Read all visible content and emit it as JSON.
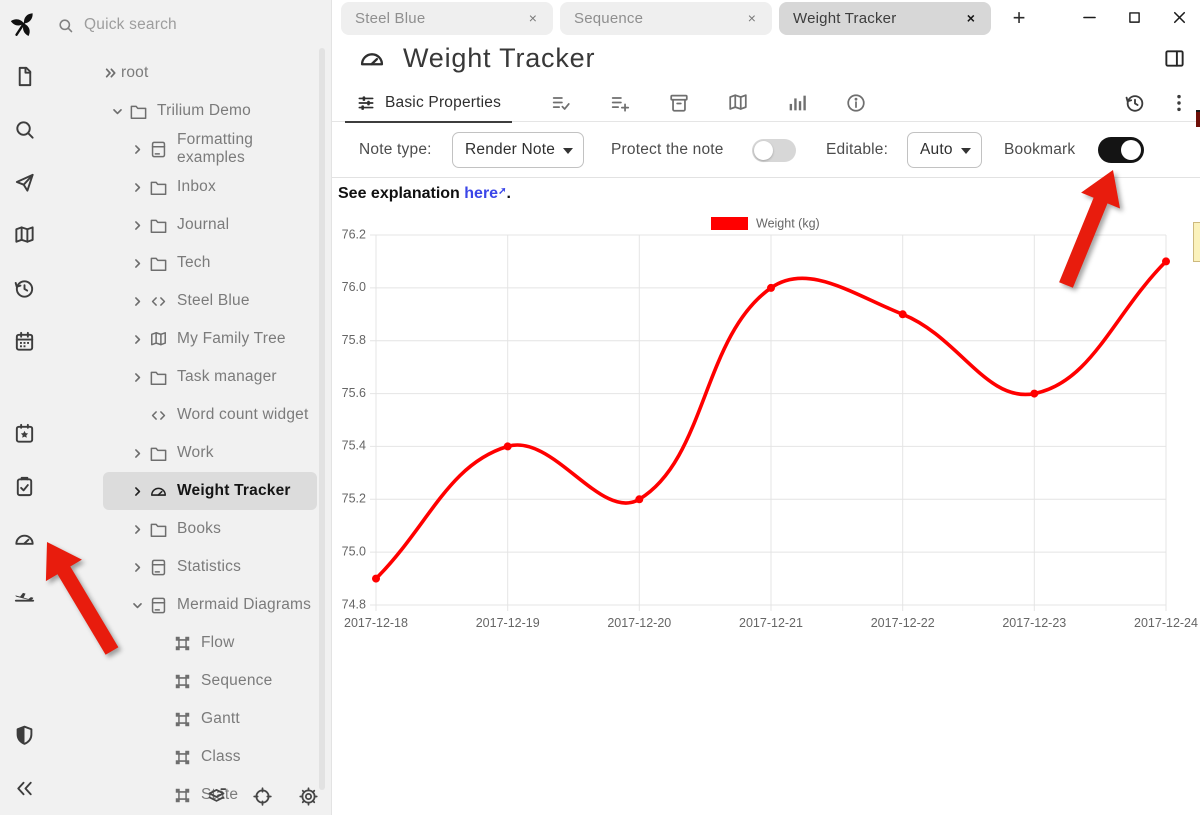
{
  "colors": {
    "chart_red": "#ff0000",
    "arrow_red": "#e81c0d",
    "link_blue": "#3b46e8",
    "pane_bg": "#f1f1f1",
    "selected_row_bg": "#dcdcdc",
    "active_tab_bg": "#d7d7d7",
    "toggle_on": "#141414"
  },
  "search": {
    "placeholder": "Quick search"
  },
  "launcher": {
    "top": [
      {
        "name": "new-note",
        "icon": "file"
      },
      {
        "name": "search-notes",
        "icon": "search"
      },
      {
        "name": "jump-to-note",
        "icon": "send"
      },
      {
        "name": "note-map",
        "icon": "map"
      },
      {
        "name": "recent-changes",
        "icon": "history"
      },
      {
        "name": "calendar",
        "icon": "calendar"
      }
    ],
    "middle": [
      {
        "name": "bookmarks",
        "icon": "calendar-star"
      },
      {
        "name": "task-manager",
        "icon": "task"
      },
      {
        "name": "weight-tracker",
        "icon": "tachometer"
      },
      {
        "name": "travel",
        "icon": "plane"
      }
    ],
    "bottom": [
      {
        "name": "protected-session",
        "icon": "shield"
      },
      {
        "name": "collapse-pane",
        "icon": "collapse"
      }
    ]
  },
  "tree": {
    "items": [
      {
        "label": "root",
        "icon": "",
        "expander": "root",
        "level": 0
      },
      {
        "label": "Trilium Demo",
        "icon": "folder",
        "expander": "down",
        "level": 1
      },
      {
        "label": "Formatting examples",
        "icon": "notebook",
        "expander": "right",
        "level": 2
      },
      {
        "label": "Inbox",
        "icon": "folder",
        "expander": "right",
        "level": 2
      },
      {
        "label": "Journal",
        "icon": "folder",
        "expander": "right",
        "level": 2
      },
      {
        "label": "Tech",
        "icon": "folder",
        "expander": "right",
        "level": 2
      },
      {
        "label": "Steel Blue",
        "icon": "code",
        "expander": "right",
        "level": 2
      },
      {
        "label": "My Family Tree",
        "icon": "map",
        "expander": "right",
        "level": 2
      },
      {
        "label": "Task manager",
        "icon": "folder",
        "expander": "right",
        "level": 2
      },
      {
        "label": "Word count widget",
        "icon": "code",
        "expander": "none",
        "level": 2
      },
      {
        "label": "Work",
        "icon": "folder",
        "expander": "right",
        "level": 2
      },
      {
        "label": "Weight Tracker",
        "icon": "tachometer",
        "expander": "right",
        "level": 2,
        "selected": true
      },
      {
        "label": "Books",
        "icon": "folder",
        "expander": "right",
        "level": 2
      },
      {
        "label": "Statistics",
        "icon": "notebook",
        "expander": "right",
        "level": 2
      },
      {
        "label": "Mermaid Diagrams",
        "icon": "notebook",
        "expander": "down",
        "level": 2
      },
      {
        "label": "Flow",
        "icon": "shape",
        "expander": "none",
        "level": 3
      },
      {
        "label": "Sequence",
        "icon": "shape",
        "expander": "none",
        "level": 3
      },
      {
        "label": "Gantt",
        "icon": "shape",
        "expander": "none",
        "level": 3
      },
      {
        "label": "Class",
        "icon": "shape",
        "expander": "none",
        "level": 3
      },
      {
        "label": "State",
        "icon": "shape",
        "expander": "none",
        "level": 3
      }
    ]
  },
  "tree_actions": [
    {
      "name": "collapse-note-tree",
      "icon": "layers"
    },
    {
      "name": "scroll-to-active-note",
      "icon": "crosshair"
    },
    {
      "name": "tree-settings",
      "icon": "cog"
    }
  ],
  "tabs": {
    "items": [
      {
        "label": "Steel Blue",
        "active": false
      },
      {
        "label": "Sequence",
        "active": false
      },
      {
        "label": "Weight Tracker",
        "active": true
      }
    ],
    "close_glyph": "×",
    "new_tab_glyph": "+"
  },
  "note": {
    "title": "Weight Tracker"
  },
  "ribbon": {
    "active_tab_label": "Basic Properties",
    "tab_icons": [
      {
        "name": "owned-attributes",
        "icon": "list-check"
      },
      {
        "name": "inherited-attributes",
        "icon": "list-plus"
      },
      {
        "name": "note-paths",
        "icon": "archive"
      },
      {
        "name": "note-map",
        "icon": "map"
      },
      {
        "name": "similar-notes",
        "icon": "bar-chart"
      },
      {
        "name": "note-info",
        "icon": "info"
      }
    ],
    "right_icons": [
      {
        "name": "note-revisions",
        "icon": "history"
      },
      {
        "name": "more-menu",
        "icon": "dots"
      }
    ]
  },
  "props": {
    "note_type_label": "Note type:",
    "note_type_value": "Render Note",
    "protect_label": "Protect the note",
    "protect_on": false,
    "editable_label": "Editable:",
    "editable_value": "Auto",
    "bookmark_label": "Bookmark",
    "bookmark_on": true
  },
  "content": {
    "explanation_prefix": "See explanation ",
    "link_text": "here",
    "suffix": "."
  },
  "chart_data": {
    "type": "line",
    "x": [
      "2017-12-18",
      "2017-12-19",
      "2017-12-20",
      "2017-12-21",
      "2017-12-22",
      "2017-12-23",
      "2017-12-24"
    ],
    "series": [
      {
        "name": "Weight (kg)",
        "color": "#ff0000",
        "values": [
          74.9,
          75.4,
          75.2,
          76.0,
          75.9,
          75.6,
          76.1
        ]
      }
    ],
    "ylim": [
      74.8,
      76.2
    ],
    "ytick_step": 0.2,
    "grid": true,
    "legend_position": "top",
    "line_tension": 0.4,
    "point_radius": 4
  }
}
